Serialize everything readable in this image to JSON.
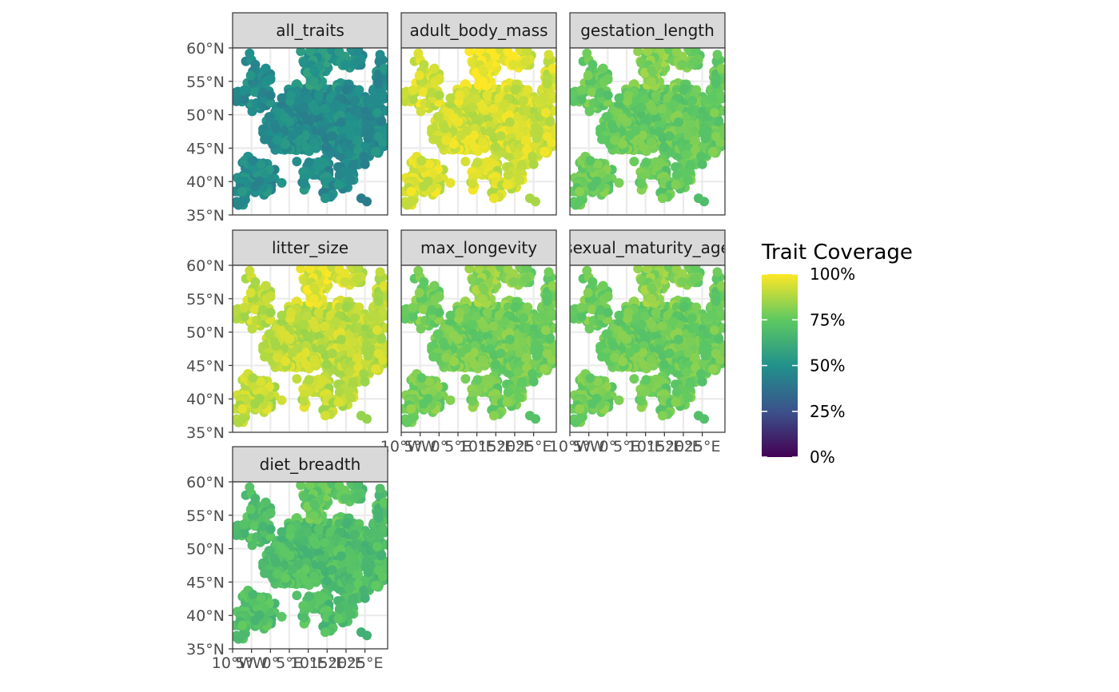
{
  "chart_data": {
    "type": "scatter",
    "subtype": "faceted map",
    "title": "",
    "xlabel": "",
    "ylabel": "",
    "xlim": [
      -10,
      31
    ],
    "ylim": [
      35,
      60
    ],
    "x_ticks": [
      "10°W",
      "5°W",
      "0°",
      "5°E",
      "10°E",
      "15°E",
      "20°E",
      "25°E"
    ],
    "x_tick_values": [
      -10,
      -5,
      0,
      5,
      10,
      15,
      20,
      25
    ],
    "y_ticks": [
      "35°N",
      "40°N",
      "45°N",
      "50°N",
      "55°N",
      "60°N"
    ],
    "y_tick_values": [
      35,
      40,
      45,
      50,
      55,
      60
    ],
    "x_tick_label_strings": [
      "10°W",
      "5°W",
      "W",
      "0°",
      "5",
      "1E",
      "D",
      "1",
      "5",
      "E",
      "2",
      "0°",
      "E"
    ],
    "legend": {
      "title": "Trait Coverage",
      "position": "right",
      "labels": [
        "100%",
        "75%",
        "50%",
        "25%",
        "0%"
      ],
      "values": [
        100,
        75,
        50,
        25,
        0
      ],
      "scale": "viridis",
      "colors": [
        "#440154",
        "#3b528b",
        "#21918c",
        "#5ec962",
        "#fde725"
      ]
    },
    "facets": [
      {
        "label": "all_traits",
        "mean_coverage": 48
      },
      {
        "label": "adult_body_mass",
        "mean_coverage": 93
      },
      {
        "label": "gestation_length",
        "mean_coverage": 76
      },
      {
        "label": "litter_size",
        "mean_coverage": 90
      },
      {
        "label": "max_longevity",
        "mean_coverage": 78
      },
      {
        "label": "sexual_maturity_age",
        "mean_coverage": 77
      },
      {
        "label": "diet_breadth",
        "mean_coverage": 70
      }
    ],
    "grid": true
  }
}
